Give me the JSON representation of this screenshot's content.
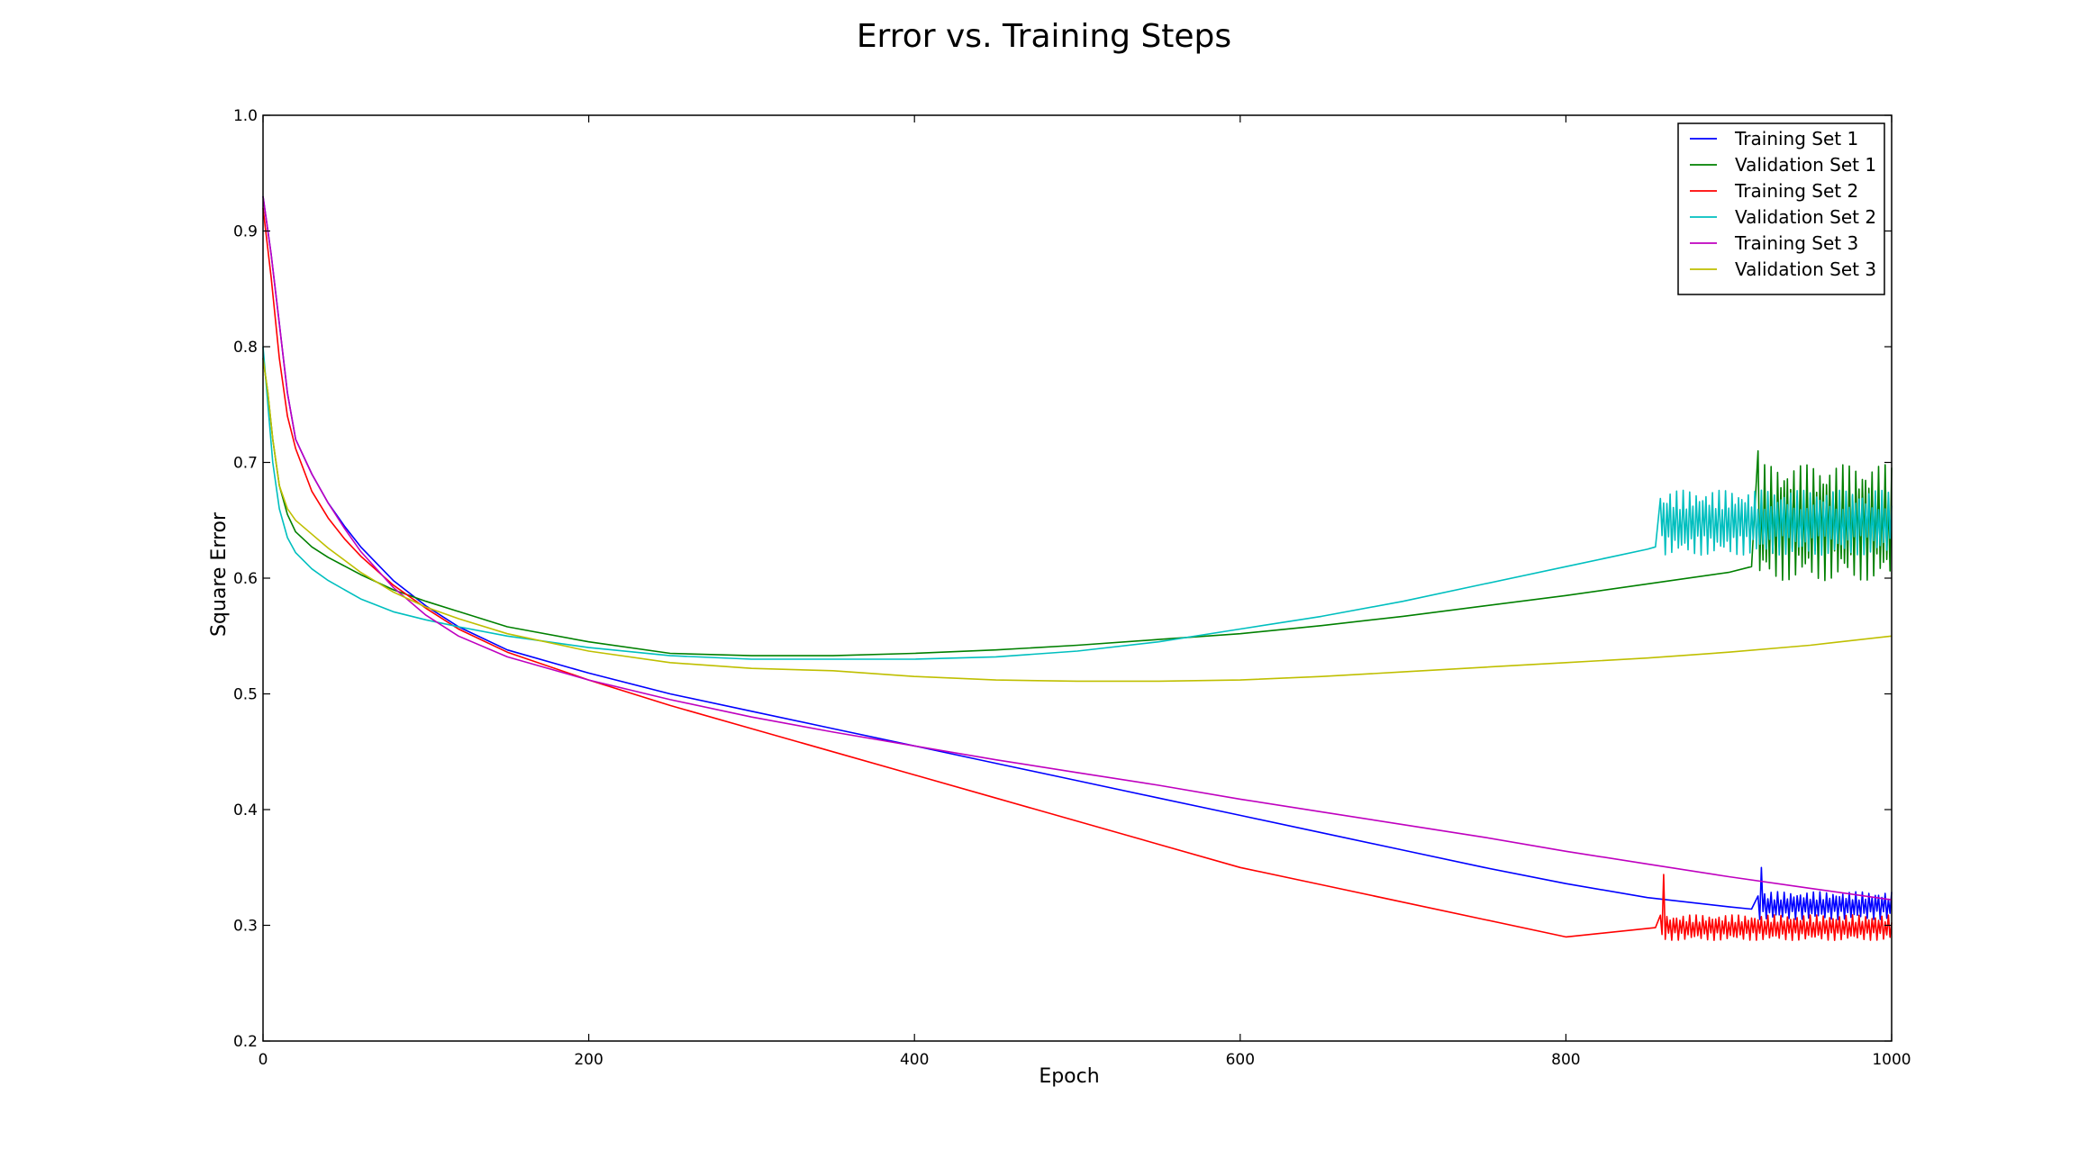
{
  "chart_data": {
    "type": "line",
    "title": "Error vs. Training Steps",
    "xlabel": "Epoch",
    "ylabel": "Square Error",
    "xlim": [
      0,
      1000
    ],
    "ylim": [
      0.2,
      1.0
    ],
    "xticks": [
      0,
      200,
      400,
      600,
      800,
      1000
    ],
    "yticks": [
      0.2,
      0.3,
      0.4,
      0.5,
      0.6,
      0.7,
      0.8,
      0.9,
      1.0
    ],
    "xtick_labels": [
      "0",
      "200",
      "400",
      "600",
      "800",
      "1000"
    ],
    "ytick_labels": [
      "0.2",
      "0.3",
      "0.4",
      "0.5",
      "0.6",
      "0.7",
      "0.8",
      "0.9",
      "1.0"
    ],
    "grid": false,
    "legend_position": "top-right",
    "series": [
      {
        "name": "Training Set 1",
        "color": "#0000ff",
        "x": [
          0,
          5,
          10,
          15,
          20,
          30,
          40,
          50,
          60,
          80,
          100,
          120,
          150,
          200,
          250,
          300,
          350,
          400,
          450,
          500,
          550,
          600,
          650,
          700,
          750,
          800,
          850,
          900,
          914
        ],
        "y": [
          0.93,
          0.88,
          0.82,
          0.76,
          0.72,
          0.69,
          0.665,
          0.645,
          0.627,
          0.598,
          0.576,
          0.558,
          0.538,
          0.518,
          0.5,
          0.485,
          0.47,
          0.455,
          0.44,
          0.425,
          0.41,
          0.395,
          0.38,
          0.365,
          0.35,
          0.336,
          0.324,
          0.316,
          0.314
        ],
        "oscillation": {
          "start": 918,
          "end": 1000,
          "base": 0.317,
          "amplitude": 0.012,
          "period": 4,
          "spike_x": 920,
          "spike_y": 0.35
        }
      },
      {
        "name": "Validation Set 1",
        "color": "#008000",
        "x": [
          0,
          3,
          6,
          10,
          15,
          20,
          30,
          40,
          60,
          80,
          100,
          150,
          200,
          250,
          300,
          350,
          400,
          450,
          500,
          550,
          600,
          650,
          700,
          750,
          800,
          850,
          900,
          914
        ],
        "y": [
          0.79,
          0.76,
          0.72,
          0.68,
          0.655,
          0.64,
          0.627,
          0.618,
          0.603,
          0.59,
          0.58,
          0.558,
          0.545,
          0.535,
          0.533,
          0.533,
          0.535,
          0.538,
          0.542,
          0.547,
          0.552,
          0.559,
          0.567,
          0.576,
          0.585,
          0.595,
          0.605,
          0.61
        ],
        "oscillation": {
          "start": 918,
          "end": 1000,
          "base": 0.648,
          "amplitude": 0.05,
          "period": 4,
          "spike_x": 918,
          "spike_y": 0.71
        }
      },
      {
        "name": "Training Set 2",
        "color": "#ff0000",
        "x": [
          0,
          5,
          10,
          15,
          20,
          30,
          40,
          50,
          60,
          80,
          100,
          120,
          150,
          200,
          250,
          300,
          350,
          400,
          450,
          500,
          550,
          600,
          650,
          700,
          750,
          800,
          855
        ],
        "y": [
          0.92,
          0.86,
          0.79,
          0.74,
          0.712,
          0.675,
          0.652,
          0.634,
          0.619,
          0.594,
          0.574,
          0.556,
          0.536,
          0.512,
          0.49,
          0.47,
          0.45,
          0.43,
          0.41,
          0.39,
          0.37,
          0.35,
          0.335,
          0.32,
          0.305,
          0.29,
          0.298
        ],
        "oscillation": {
          "start": 858,
          "end": 1000,
          "base": 0.298,
          "amplitude": 0.011,
          "period": 4,
          "spike_x": 860,
          "spike_y": 0.344
        }
      },
      {
        "name": "Validation Set 2",
        "color": "#00bfbf",
        "x": [
          0,
          3,
          6,
          10,
          15,
          20,
          30,
          40,
          60,
          80,
          100,
          120,
          150,
          200,
          250,
          300,
          350,
          400,
          450,
          500,
          550,
          600,
          650,
          700,
          750,
          800,
          850,
          855
        ],
        "y": [
          0.8,
          0.75,
          0.7,
          0.66,
          0.635,
          0.622,
          0.608,
          0.598,
          0.582,
          0.571,
          0.564,
          0.558,
          0.55,
          0.54,
          0.533,
          0.53,
          0.53,
          0.53,
          0.532,
          0.537,
          0.545,
          0.556,
          0.567,
          0.58,
          0.595,
          0.61,
          0.625,
          0.627
        ],
        "oscillation": {
          "start": 858,
          "end": 1000,
          "base": 0.648,
          "amplitude": 0.028,
          "period": 5,
          "spike_x": 860,
          "spike_y": 0.665
        }
      },
      {
        "name": "Training Set 3",
        "color": "#bf00bf",
        "x": [
          0,
          5,
          10,
          15,
          20,
          30,
          40,
          50,
          60,
          80,
          100,
          120,
          150,
          200,
          250,
          300,
          350,
          400,
          450,
          500,
          550,
          600,
          650,
          700,
          750,
          800,
          850,
          900,
          950,
          1000
        ],
        "y": [
          0.93,
          0.88,
          0.82,
          0.76,
          0.72,
          0.69,
          0.665,
          0.643,
          0.623,
          0.592,
          0.568,
          0.55,
          0.532,
          0.512,
          0.495,
          0.48,
          0.467,
          0.455,
          0.443,
          0.432,
          0.421,
          0.409,
          0.398,
          0.387,
          0.376,
          0.364,
          0.353,
          0.342,
          0.332,
          0.322
        ]
      },
      {
        "name": "Validation Set 3",
        "color": "#bfbf00",
        "x": [
          0,
          3,
          6,
          10,
          15,
          20,
          30,
          40,
          60,
          80,
          100,
          120,
          150,
          200,
          250,
          300,
          350,
          400,
          450,
          500,
          550,
          600,
          650,
          700,
          750,
          800,
          850,
          900,
          950,
          1000
        ],
        "y": [
          0.79,
          0.76,
          0.72,
          0.68,
          0.66,
          0.65,
          0.638,
          0.626,
          0.605,
          0.588,
          0.575,
          0.565,
          0.552,
          0.537,
          0.527,
          0.522,
          0.52,
          0.515,
          0.512,
          0.511,
          0.511,
          0.512,
          0.515,
          0.519,
          0.523,
          0.527,
          0.531,
          0.536,
          0.542,
          0.55
        ]
      }
    ]
  }
}
